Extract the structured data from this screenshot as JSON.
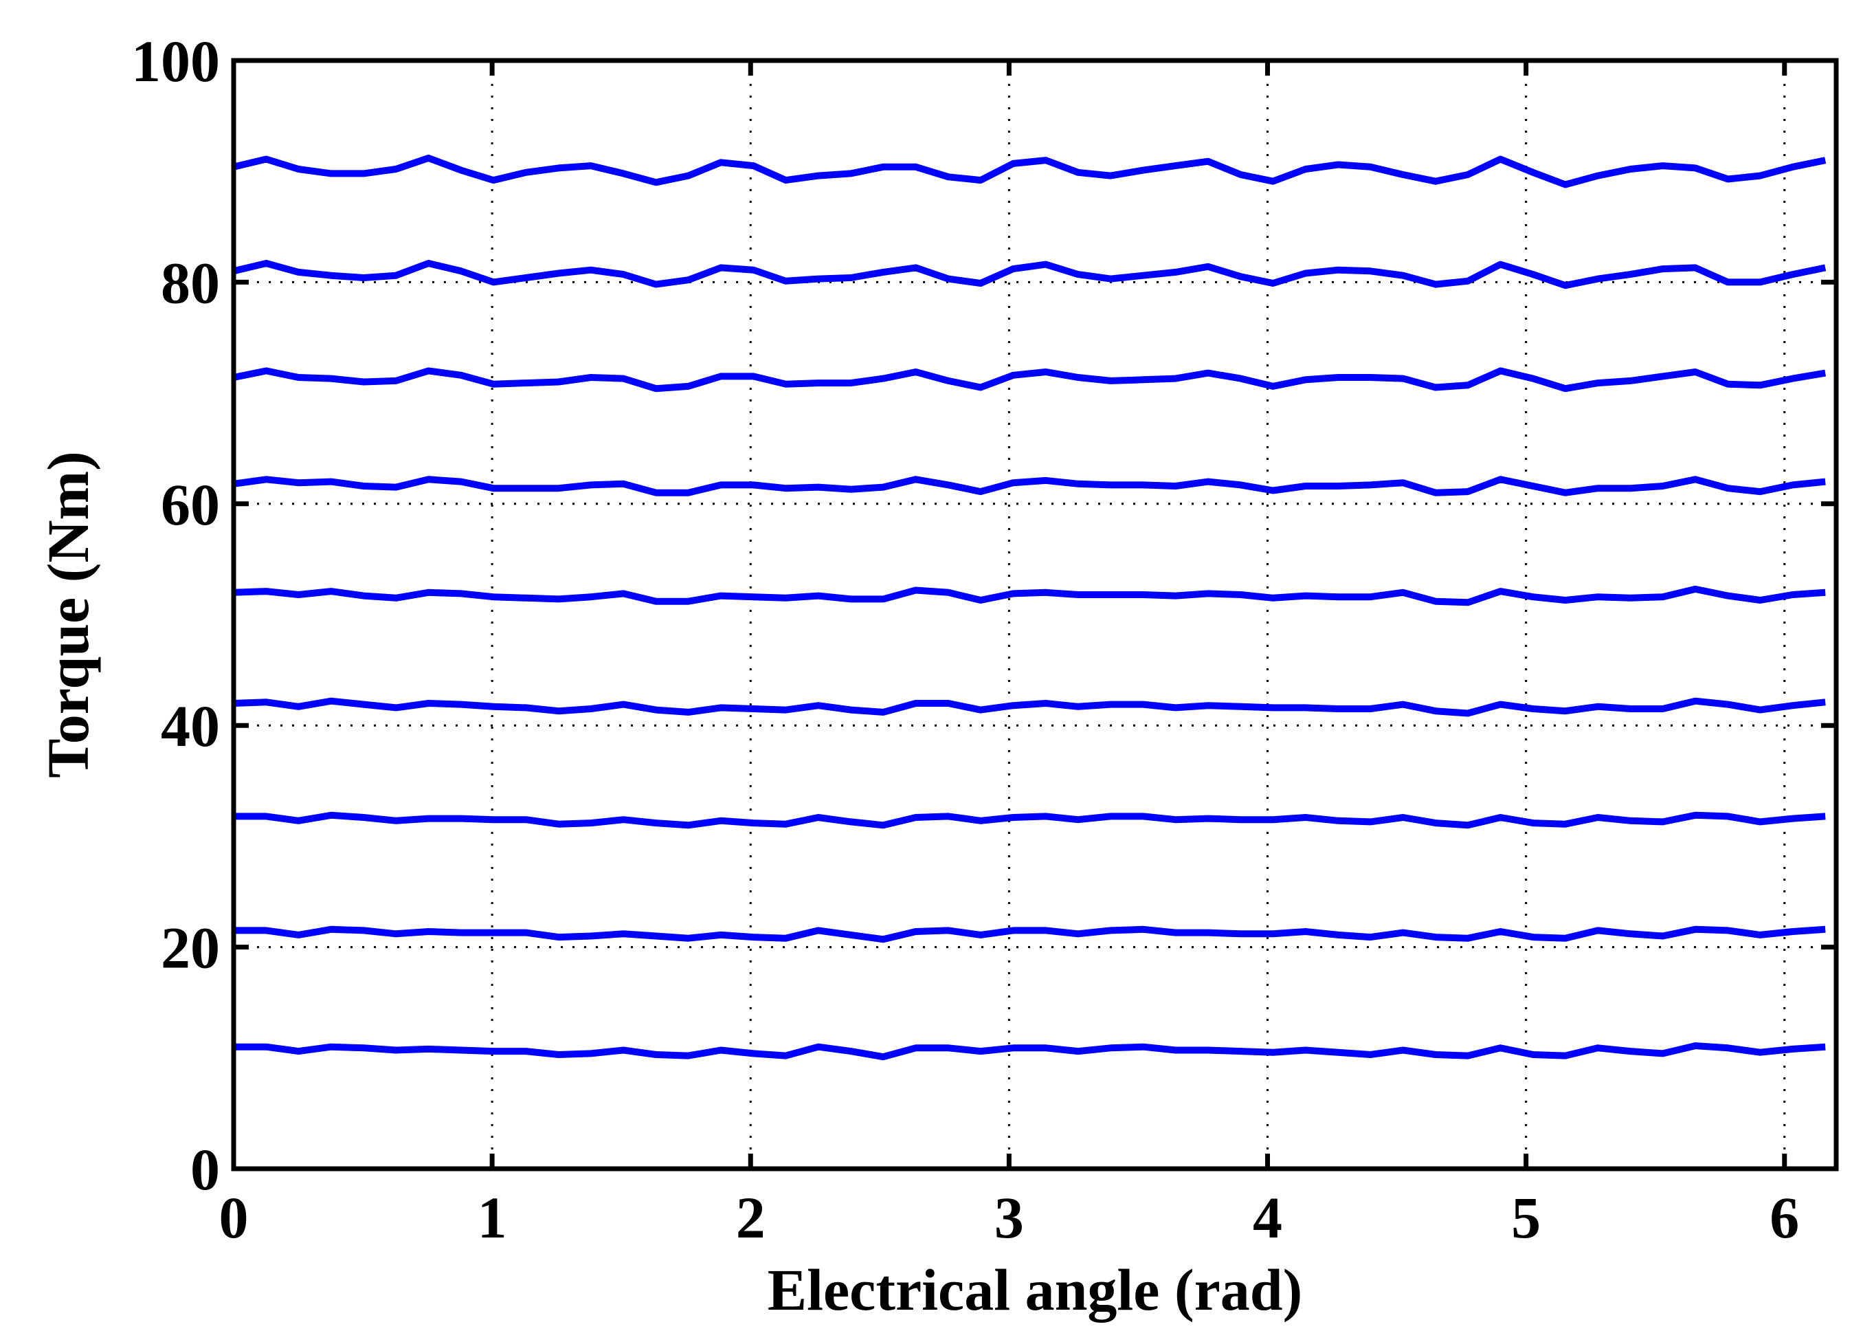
{
  "chart_data": {
    "type": "line",
    "title": "",
    "xlabel": "Electrical angle (rad)",
    "ylabel": "Torque (Nm)",
    "xlim": [
      0,
      6.2
    ],
    "ylim": [
      0,
      100
    ],
    "xticks": [
      0,
      1,
      2,
      3,
      4,
      5,
      6
    ],
    "yticks": [
      0,
      20,
      40,
      60,
      80,
      100
    ],
    "xtick_labels": [
      "0",
      "1",
      "2",
      "3",
      "4",
      "5",
      "6"
    ],
    "ytick_labels": [
      "0",
      "20",
      "40",
      "60",
      "80",
      "100"
    ],
    "grid": true,
    "legend": "none",
    "line_color": "#0000ff",
    "x": [
      0,
      0.126,
      0.251,
      0.377,
      0.503,
      0.628,
      0.754,
      0.88,
      1.005,
      1.131,
      1.257,
      1.382,
      1.508,
      1.634,
      1.759,
      1.885,
      2.011,
      2.136,
      2.262,
      2.388,
      2.513,
      2.639,
      2.765,
      2.89,
      3.016,
      3.142,
      3.267,
      3.393,
      3.519,
      3.644,
      3.77,
      3.896,
      4.021,
      4.147,
      4.273,
      4.398,
      4.524,
      4.65,
      4.775,
      4.901,
      5.027,
      5.152,
      5.278,
      5.404,
      5.529,
      5.655,
      5.781,
      5.906,
      6.032,
      6.158
    ],
    "series": [
      {
        "values": [
          90.4,
          91.1,
          90.2,
          89.8,
          89.8,
          90.2,
          91.2,
          90.1,
          89.2,
          89.9,
          90.3,
          90.5,
          89.8,
          89.0,
          89.6,
          90.8,
          90.5,
          89.2,
          89.6,
          89.8,
          90.4,
          90.4,
          89.5,
          89.2,
          90.7,
          91.0,
          89.9,
          89.6,
          90.1,
          90.5,
          90.9,
          89.7,
          89.1,
          90.2,
          90.6,
          90.4,
          89.7,
          89.1,
          89.7,
          91.1,
          89.9,
          88.8,
          89.6,
          90.2,
          90.5,
          90.3,
          89.3,
          89.6,
          90.4,
          91.0
        ]
      },
      {
        "values": [
          81.0,
          81.7,
          80.9,
          80.6,
          80.4,
          80.6,
          81.7,
          81.0,
          80.0,
          80.4,
          80.8,
          81.1,
          80.7,
          79.8,
          80.2,
          81.3,
          81.1,
          80.1,
          80.3,
          80.4,
          80.9,
          81.3,
          80.3,
          79.9,
          81.2,
          81.6,
          80.7,
          80.3,
          80.6,
          80.9,
          81.4,
          80.5,
          79.9,
          80.8,
          81.1,
          81.0,
          80.6,
          79.8,
          80.1,
          81.6,
          80.7,
          79.7,
          80.3,
          80.7,
          81.2,
          81.3,
          80.0,
          80.0,
          80.7,
          81.3
        ]
      },
      {
        "values": [
          71.4,
          72.0,
          71.4,
          71.3,
          71.0,
          71.1,
          72.0,
          71.6,
          70.8,
          70.9,
          71.0,
          71.4,
          71.3,
          70.4,
          70.6,
          71.5,
          71.5,
          70.8,
          70.9,
          70.9,
          71.3,
          71.9,
          71.1,
          70.5,
          71.6,
          71.9,
          71.4,
          71.1,
          71.2,
          71.3,
          71.8,
          71.3,
          70.6,
          71.2,
          71.4,
          71.4,
          71.3,
          70.5,
          70.7,
          72.0,
          71.3,
          70.4,
          70.9,
          71.1,
          71.5,
          71.9,
          70.8,
          70.7,
          71.3,
          71.8
        ]
      },
      {
        "values": [
          61.8,
          62.2,
          61.9,
          62.0,
          61.6,
          61.5,
          62.2,
          62.0,
          61.4,
          61.4,
          61.4,
          61.7,
          61.8,
          61.0,
          61.0,
          61.7,
          61.7,
          61.4,
          61.5,
          61.3,
          61.5,
          62.2,
          61.7,
          61.1,
          61.9,
          62.1,
          61.8,
          61.7,
          61.7,
          61.6,
          62.0,
          61.7,
          61.2,
          61.6,
          61.6,
          61.7,
          61.9,
          61.0,
          61.1,
          62.2,
          61.6,
          61.0,
          61.4,
          61.4,
          61.6,
          62.2,
          61.4,
          61.1,
          61.7,
          62.0
        ]
      },
      {
        "values": [
          52.0,
          52.1,
          51.8,
          52.1,
          51.7,
          51.5,
          52.0,
          51.9,
          51.6,
          51.5,
          51.4,
          51.6,
          51.9,
          51.2,
          51.2,
          51.7,
          51.6,
          51.5,
          51.7,
          51.4,
          51.4,
          52.2,
          52.0,
          51.3,
          51.9,
          52.0,
          51.8,
          51.8,
          51.8,
          51.7,
          51.9,
          51.8,
          51.5,
          51.7,
          51.6,
          51.6,
          52.0,
          51.2,
          51.1,
          52.1,
          51.6,
          51.3,
          51.6,
          51.5,
          51.6,
          52.3,
          51.7,
          51.3,
          51.8,
          52.0
        ]
      },
      {
        "values": [
          42.0,
          42.1,
          41.7,
          42.2,
          41.9,
          41.6,
          42.0,
          41.9,
          41.7,
          41.6,
          41.3,
          41.5,
          41.9,
          41.4,
          41.2,
          41.6,
          41.5,
          41.4,
          41.8,
          41.4,
          41.2,
          42.0,
          42.0,
          41.4,
          41.8,
          42.0,
          41.7,
          41.9,
          41.9,
          41.6,
          41.8,
          41.7,
          41.6,
          41.6,
          41.5,
          41.5,
          41.9,
          41.3,
          41.1,
          41.9,
          41.5,
          41.3,
          41.7,
          41.5,
          41.5,
          42.2,
          41.9,
          41.4,
          41.8,
          42.1
        ]
      },
      {
        "values": [
          31.8,
          31.8,
          31.4,
          31.9,
          31.7,
          31.4,
          31.6,
          31.6,
          31.5,
          31.5,
          31.1,
          31.2,
          31.5,
          31.2,
          31.0,
          31.4,
          31.2,
          31.1,
          31.7,
          31.3,
          31.0,
          31.7,
          31.8,
          31.4,
          31.7,
          31.8,
          31.5,
          31.8,
          31.8,
          31.5,
          31.6,
          31.5,
          31.5,
          31.7,
          31.4,
          31.3,
          31.7,
          31.2,
          31.0,
          31.7,
          31.2,
          31.1,
          31.7,
          31.4,
          31.3,
          31.9,
          31.8,
          31.3,
          31.6,
          31.8
        ]
      },
      {
        "values": [
          21.5,
          21.5,
          21.1,
          21.6,
          21.5,
          21.2,
          21.4,
          21.3,
          21.3,
          21.3,
          20.9,
          21.0,
          21.2,
          21.0,
          20.8,
          21.1,
          20.9,
          20.8,
          21.5,
          21.1,
          20.7,
          21.4,
          21.5,
          21.1,
          21.5,
          21.5,
          21.2,
          21.5,
          21.6,
          21.3,
          21.3,
          21.2,
          21.2,
          21.4,
          21.1,
          20.9,
          21.3,
          20.9,
          20.8,
          21.4,
          20.9,
          20.8,
          21.5,
          21.2,
          21.0,
          21.6,
          21.5,
          21.1,
          21.4,
          21.6
        ]
      },
      {
        "values": [
          11.0,
          11.0,
          10.6,
          11.0,
          10.9,
          10.7,
          10.8,
          10.7,
          10.6,
          10.6,
          10.3,
          10.4,
          10.7,
          10.3,
          10.2,
          10.7,
          10.4,
          10.2,
          11.0,
          10.6,
          10.1,
          10.9,
          10.9,
          10.6,
          10.9,
          10.9,
          10.6,
          10.9,
          11.0,
          10.7,
          10.7,
          10.6,
          10.5,
          10.7,
          10.5,
          10.3,
          10.7,
          10.3,
          10.2,
          10.9,
          10.3,
          10.2,
          10.9,
          10.6,
          10.4,
          11.1,
          10.9,
          10.5,
          10.8,
          11.0
        ]
      }
    ]
  }
}
